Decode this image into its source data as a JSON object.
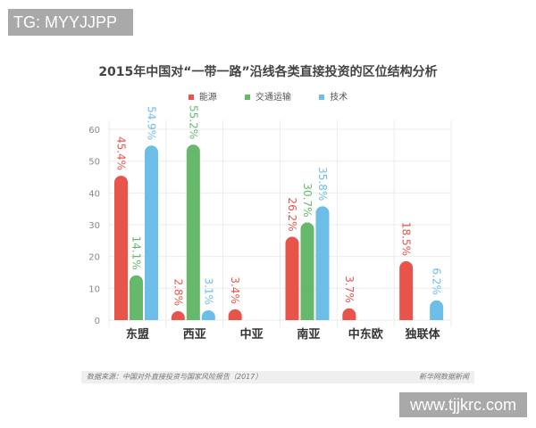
{
  "watermarks": {
    "top_left": "TG: MYYJJPP",
    "bottom_right": "www.tjjkrc.com"
  },
  "chart_data": {
    "type": "bar",
    "title": "2015年中国对“一带一路”沿线各类直接投资的区位结构分析",
    "categories": [
      "东盟",
      "西亚",
      "中亚",
      "南亚",
      "中东欧",
      "独联体"
    ],
    "series": [
      {
        "name": "能源",
        "color": "#e8534a",
        "values": [
          45.4,
          2.8,
          3.4,
          26.2,
          3.7,
          18.5
        ]
      },
      {
        "name": "交通运输",
        "color": "#66b96a",
        "values": [
          14.1,
          55.2,
          null,
          30.7,
          null,
          null
        ]
      },
      {
        "name": "技术",
        "color": "#6cbde8",
        "values": [
          54.9,
          3.1,
          null,
          35.8,
          null,
          6.2
        ]
      }
    ],
    "yticks": [
      0,
      10,
      20,
      30,
      40,
      50,
      60
    ],
    "ylim": [
      0,
      60
    ],
    "grid": true,
    "legend": "top",
    "data_label_suffix": "%"
  },
  "source": {
    "left": "数据来源：中国对外直接投资与国家风险报告（2017）",
    "right": "新华网数据新闻"
  }
}
